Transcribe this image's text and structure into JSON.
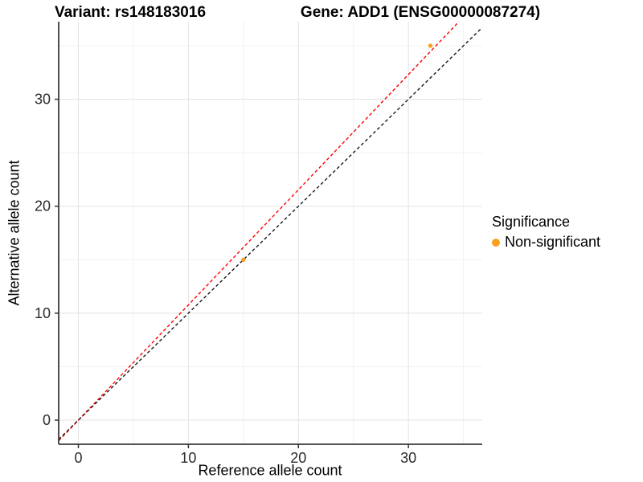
{
  "chart_data": {
    "type": "scatter",
    "title_left": "Variant: rs148183016",
    "title_right": "Gene: ADD1 (ENSG00000087274)",
    "xlabel": "Reference allele count",
    "ylabel": "Alternative allele count",
    "xlim": [
      -1.79,
      36.71
    ],
    "ylim": [
      -2.25,
      37.25
    ],
    "x_ticks": [
      0,
      10,
      20,
      30
    ],
    "y_ticks": [
      0,
      10,
      20,
      30
    ],
    "x_minor_ticks": [
      5,
      15,
      25,
      35
    ],
    "y_minor_ticks": [
      5,
      15,
      25,
      35
    ],
    "grid": "major+minor",
    "points": [
      {
        "x": 15,
        "y": 15,
        "group": "Non-significant"
      },
      {
        "x": 32,
        "y": 35,
        "group": "Non-significant"
      }
    ],
    "point_color": "#F9A11E",
    "lines": [
      {
        "name": "fit-line",
        "slope": 1.077,
        "intercept": 0,
        "color": "#FF0000",
        "style": "dashed"
      },
      {
        "name": "identity-line",
        "slope": 1.0,
        "intercept": 0,
        "color": "#1A1A1A",
        "style": "dashed"
      }
    ],
    "legend": {
      "title": "Significance",
      "position": "right",
      "items": [
        {
          "label": "Non-significant",
          "color": "#F9A11E"
        }
      ]
    },
    "colors": {
      "grid_major": "#E3E3E3",
      "grid_minor": "#F1F1F1",
      "axis_line": "#3A3A3A",
      "tick_mark": "#333333",
      "tick_text": "#2B2B2B",
      "background": "#FFFFFF"
    }
  }
}
